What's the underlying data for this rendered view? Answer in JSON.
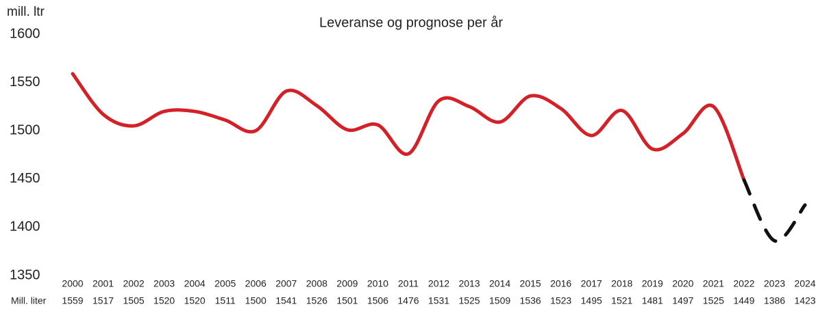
{
  "chart_data": {
    "type": "line",
    "title": "Leveranse og prognose per år",
    "y_label": "mill. ltr",
    "table_row_label": "Mill. liter",
    "categories": [
      "2000",
      "2001",
      "2002",
      "2003",
      "2004",
      "2005",
      "2006",
      "2007",
      "2008",
      "2009",
      "2010",
      "2011",
      "2012",
      "2013",
      "2014",
      "2015",
      "2016",
      "2017",
      "2018",
      "2019",
      "2020",
      "2021",
      "2022",
      "2023",
      "2024"
    ],
    "series": [
      {
        "color": "#d42027",
        "dashed": false,
        "values": [
          1559,
          1517,
          1505,
          1520,
          1520,
          1511,
          1500,
          1541,
          1526,
          1501,
          1506,
          1476,
          1531,
          1525,
          1509,
          1536,
          1523,
          1495,
          1521,
          1481,
          1497,
          1525,
          1449,
          null,
          null
        ]
      },
      {
        "color": "#111111",
        "dashed": true,
        "values": [
          null,
          null,
          null,
          null,
          null,
          null,
          null,
          null,
          null,
          null,
          null,
          null,
          null,
          null,
          null,
          null,
          null,
          null,
          null,
          null,
          null,
          null,
          1449,
          1386,
          1423
        ]
      }
    ],
    "ylim": [
      1350,
      1600
    ],
    "yticks": [
      1350,
      1400,
      1450,
      1500,
      1550,
      1600
    ]
  }
}
